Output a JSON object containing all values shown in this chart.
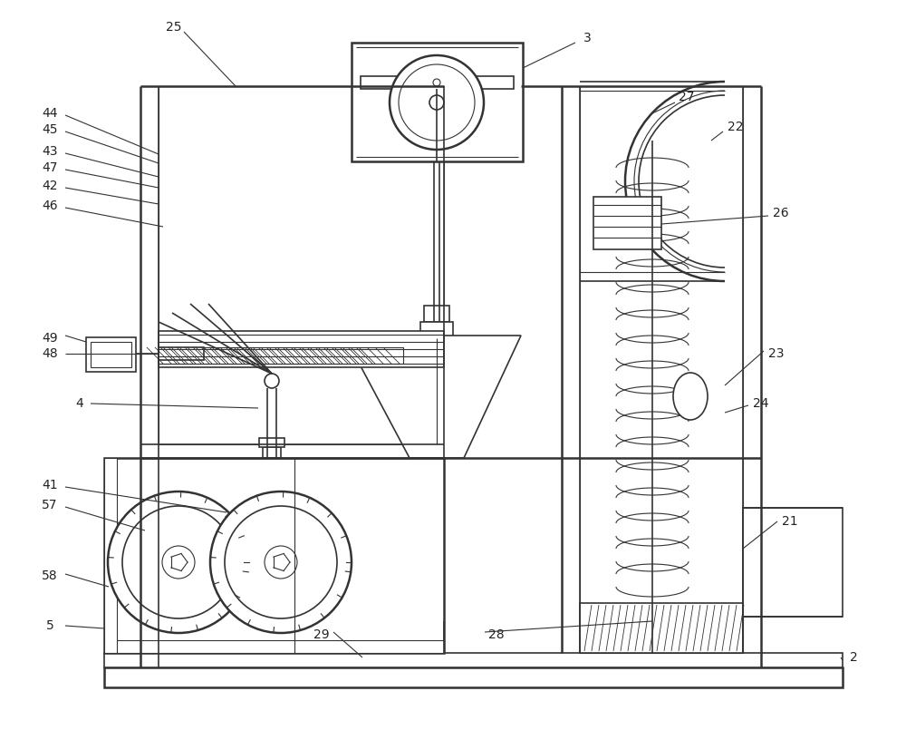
{
  "bg_color": "#ffffff",
  "line_color": "#333333",
  "label_color": "#222222",
  "fig_width": 10.0,
  "fig_height": 8.05,
  "dpi": 100
}
